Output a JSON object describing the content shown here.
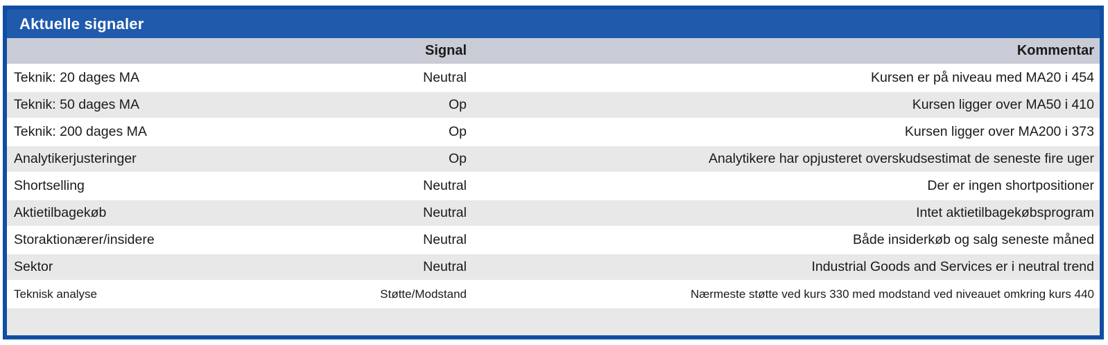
{
  "panel": {
    "title": "Aktuelle signaler"
  },
  "table": {
    "columns": {
      "label": "",
      "signal": "Signal",
      "comment": "Kommentar"
    },
    "rows": [
      {
        "label": "Teknik: 20 dages MA",
        "signal": "Neutral",
        "comment": "Kursen er på niveau med MA20 i 454",
        "small": false
      },
      {
        "label": "Teknik: 50 dages MA",
        "signal": "Op",
        "comment": "Kursen ligger over MA50 i 410",
        "small": false
      },
      {
        "label": "Teknik: 200 dages MA",
        "signal": "Op",
        "comment": "Kursen ligger over MA200 i 373",
        "small": false
      },
      {
        "label": "Analytikerjusteringer",
        "signal": "Op",
        "comment": "Analytikere har opjusteret overskudsestimat de seneste fire uger",
        "small": false
      },
      {
        "label": "Shortselling",
        "signal": "Neutral",
        "comment": "Der er ingen shortpositioner",
        "small": false
      },
      {
        "label": "Aktietilbagekøb",
        "signal": "Neutral",
        "comment": "Intet aktietilbagekøbsprogram",
        "small": false
      },
      {
        "label": "Storaktionærer/insidere",
        "signal": "Neutral",
        "comment": "Både insiderkøb og salg seneste måned",
        "small": false
      },
      {
        "label": "Sektor",
        "signal": "Neutral",
        "comment": "Industrial Goods and Services er i neutral trend",
        "small": false
      },
      {
        "label": "Teknisk analyse",
        "signal": "Støtte/Modstand",
        "comment": "Nærmeste støtte ved kurs 330 med modstand ved niveauet omkring kurs 440",
        "small": true
      }
    ]
  },
  "colors": {
    "border": "#104EA2",
    "title_bg": "#1F5AAD",
    "title_text": "#FFFFFF",
    "header_bg": "#C9CCD6",
    "row_alt_bg": "#E8E8E8",
    "row_bg": "#FFFFFF",
    "text": "#1A1A1A"
  }
}
